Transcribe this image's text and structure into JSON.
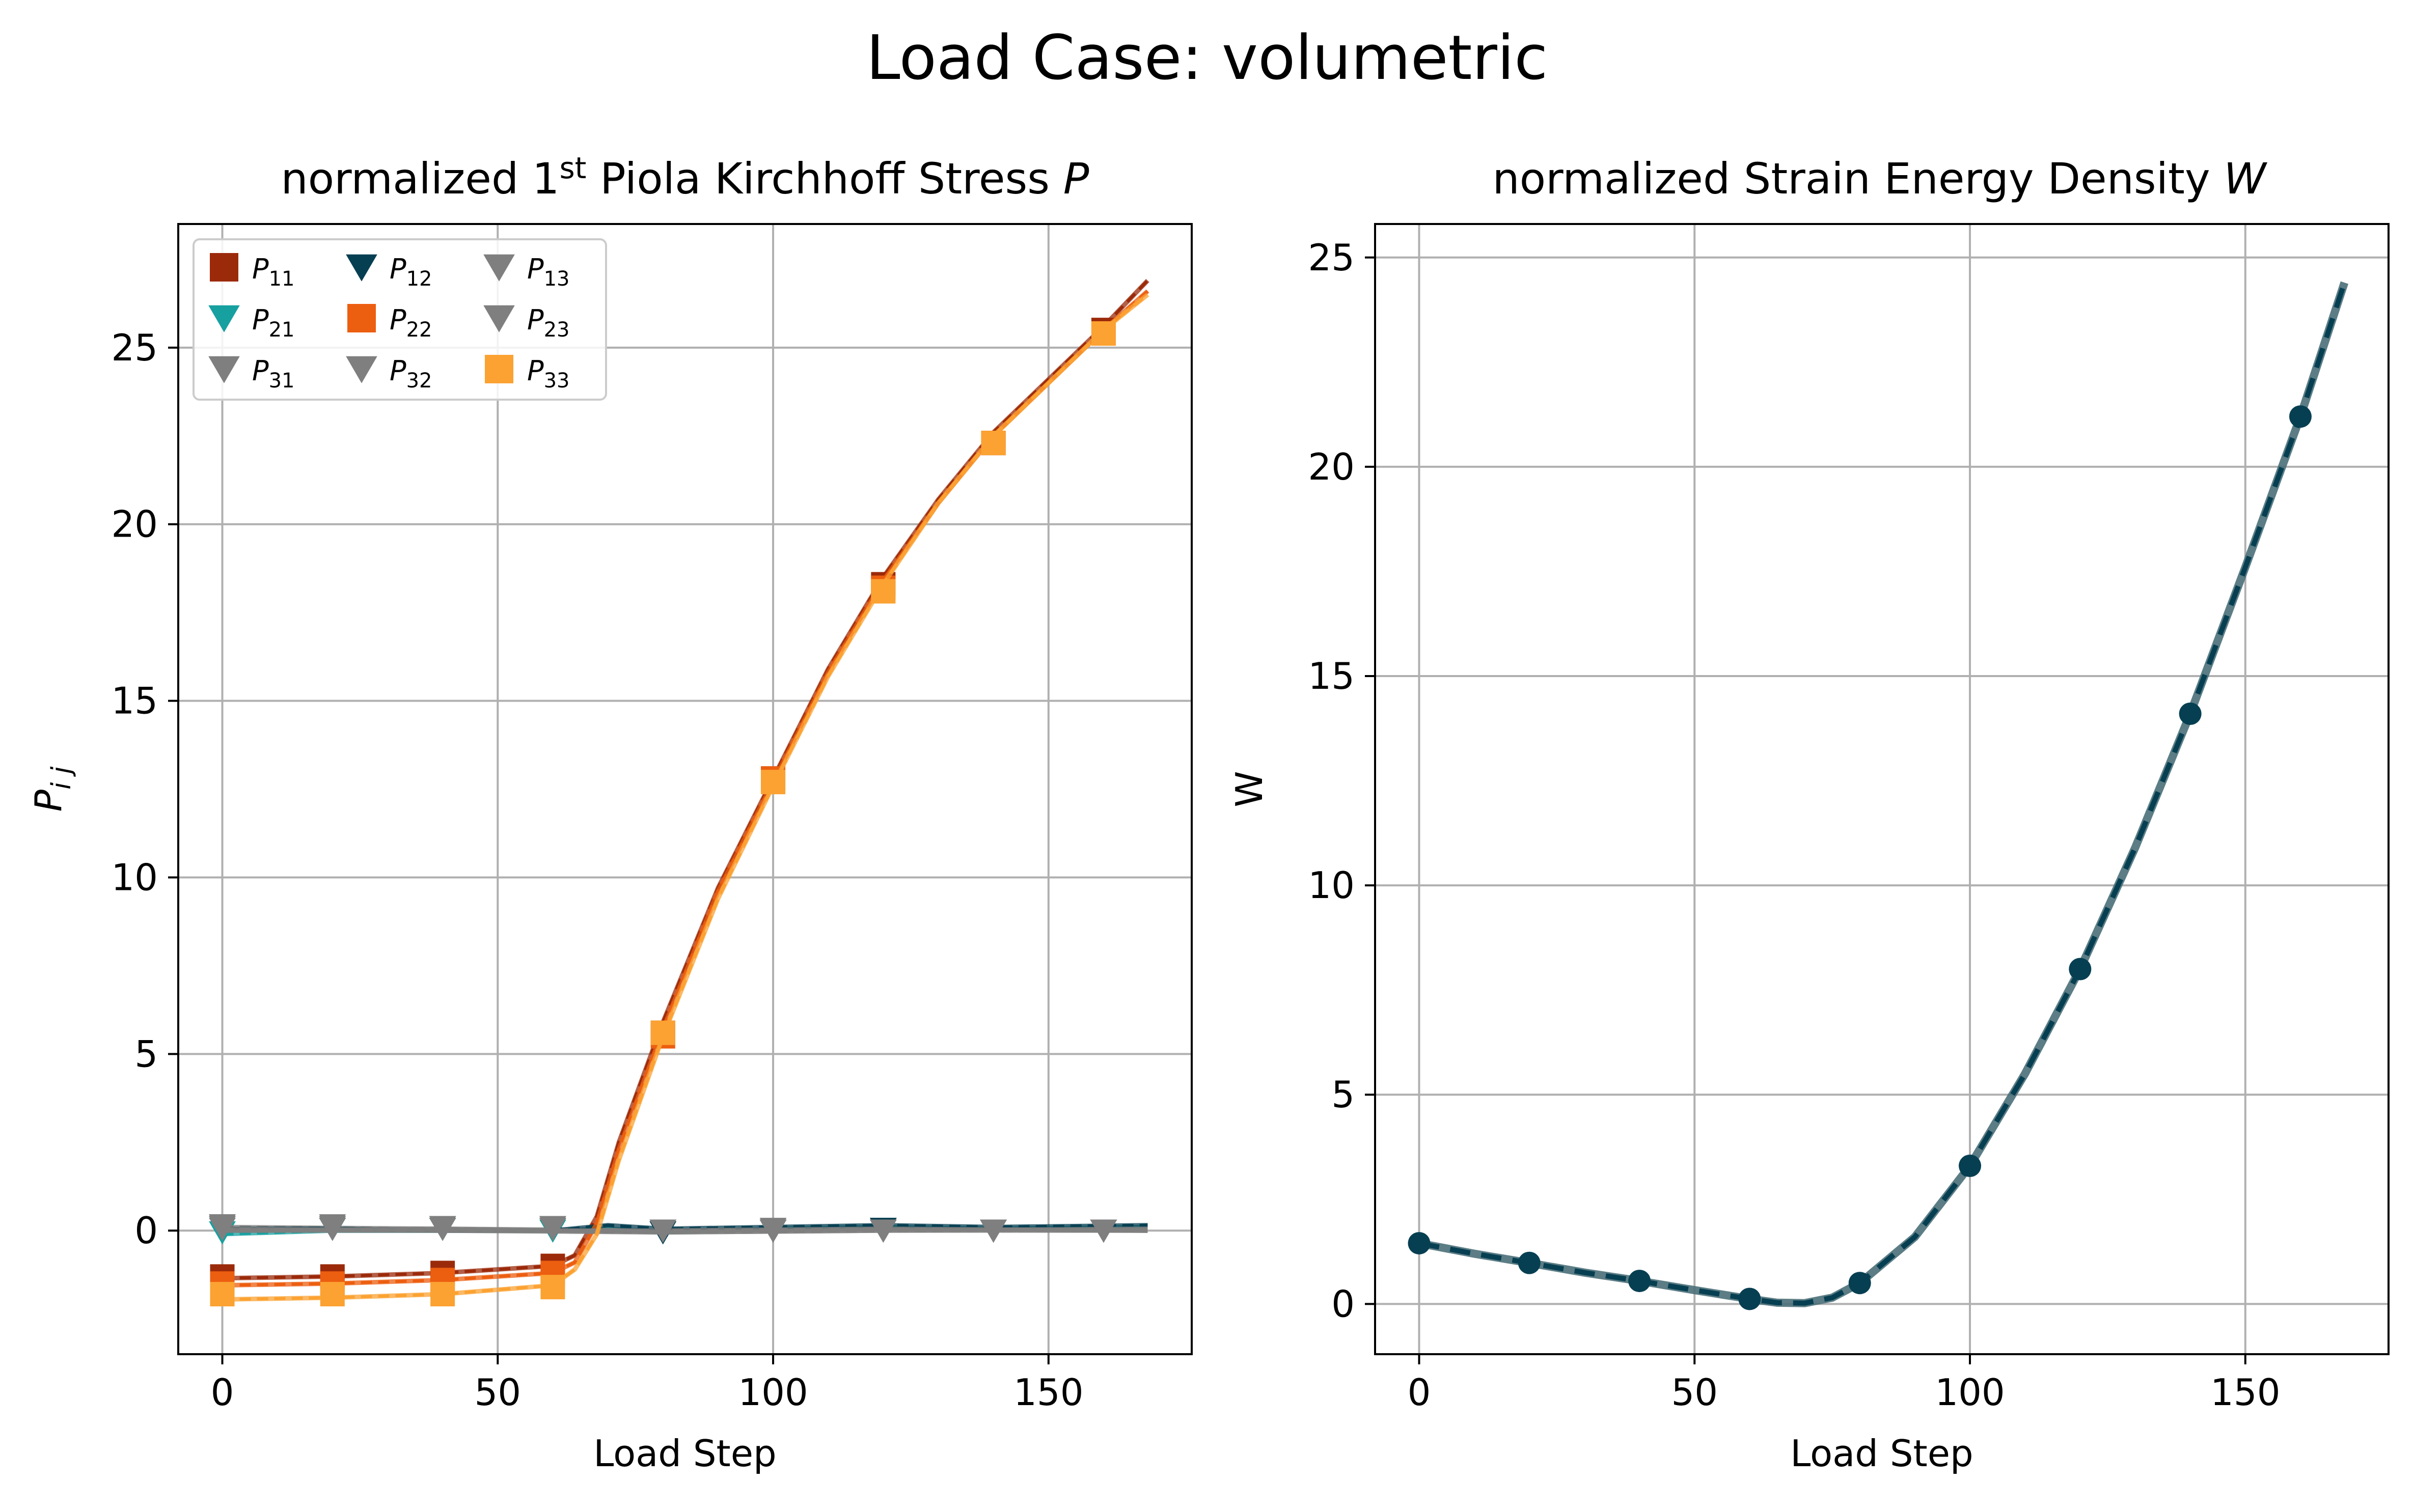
{
  "figure": {
    "suptitle": "Load Case: volumetric"
  },
  "chart_data": [
    {
      "type": "line",
      "title_prefix": "normalized 1",
      "title_sup": "st",
      "title_mid": " Piola Kirchhoff Stress ",
      "title_var": "P",
      "xlabel": "Load Step",
      "ylabel_main": "P",
      "ylabel_sub": "i j",
      "xlim": [
        -8,
        176
      ],
      "ylim": [
        -3.5,
        28.5
      ],
      "xticks": [
        0,
        50,
        100,
        150
      ],
      "yticks": [
        0,
        5,
        10,
        15,
        20,
        25
      ],
      "grid": true,
      "legend_position": "upper-left",
      "legend_columns": 3,
      "series": [
        {
          "name": "P11",
          "label_main": "P",
          "label_sub": "11",
          "marker": "square",
          "color": "#9b2a0a",
          "x": [
            0,
            20,
            40,
            60,
            80,
            100,
            120,
            140,
            160,
            168
          ],
          "y": [
            -1.3,
            -1.3,
            -1.2,
            -1.0,
            5.6,
            12.8,
            18.3,
            22.3,
            25.5,
            26.9
          ],
          "line_x": [
            0,
            20,
            40,
            60,
            64,
            68,
            72,
            80,
            90,
            100,
            110,
            120,
            130,
            140,
            150,
            160,
            168
          ],
          "line_y": [
            -1.35,
            -1.3,
            -1.2,
            -1.0,
            -0.7,
            0.4,
            2.5,
            5.9,
            9.7,
            12.8,
            15.9,
            18.5,
            20.7,
            22.6,
            24.1,
            25.6,
            26.9
          ]
        },
        {
          "name": "P21",
          "label_main": "P",
          "label_sub": "21",
          "marker": "tri-down",
          "color": "#16a0a0",
          "x": [
            0,
            20,
            40,
            60,
            80,
            100,
            120,
            140,
            160
          ],
          "y": [
            -0.05,
            0.05,
            0.05,
            0.0,
            -0.05,
            0.0,
            0.05,
            0.0,
            0.0
          ],
          "line_x": [
            0,
            20,
            40,
            60,
            70,
            80,
            100,
            120,
            140,
            168
          ],
          "line_y": [
            -0.1,
            0.0,
            0.0,
            0.0,
            0.05,
            -0.05,
            0.05,
            0.1,
            0.05,
            0.1
          ]
        },
        {
          "name": "P31",
          "label_main": "P",
          "label_sub": "31",
          "marker": "tri-down",
          "color": "#7f7f7f",
          "x": [
            0,
            20,
            40,
            60,
            80,
            100,
            120,
            140,
            160
          ],
          "y": [
            0.15,
            0.1,
            0.1,
            0.1,
            0.0,
            0.05,
            0.05,
            0.0,
            0.0
          ],
          "line_x": [
            0,
            40,
            80,
            120,
            168
          ],
          "line_y": [
            0.1,
            0.05,
            0.0,
            0.05,
            0.0
          ]
        },
        {
          "name": "P12",
          "label_main": "P",
          "label_sub": "12",
          "marker": "tri-down",
          "color": "#073f52",
          "x": [
            0,
            20,
            40,
            60,
            80,
            100,
            120,
            140,
            160
          ],
          "y": [
            0.1,
            0.05,
            0.05,
            0.05,
            -0.05,
            0.0,
            0.05,
            0.0,
            0.0
          ],
          "line_x": [
            0,
            20,
            40,
            60,
            70,
            80,
            100,
            120,
            140,
            168
          ],
          "line_y": [
            0.05,
            0.05,
            0.0,
            0.0,
            0.15,
            0.05,
            0.1,
            0.15,
            0.1,
            0.15
          ]
        },
        {
          "name": "P22",
          "label_main": "P",
          "label_sub": "22",
          "marker": "square",
          "color": "#ec5e10",
          "x": [
            0,
            20,
            40,
            60,
            80,
            100,
            120,
            140,
            160,
            168
          ],
          "y": [
            -1.5,
            -1.5,
            -1.4,
            -1.2,
            5.5,
            12.8,
            18.2,
            22.3,
            25.4,
            26.6
          ],
          "line_x": [
            0,
            20,
            40,
            60,
            64,
            68,
            72,
            80,
            90,
            100,
            110,
            120,
            130,
            140,
            150,
            160,
            168
          ],
          "line_y": [
            -1.55,
            -1.5,
            -1.4,
            -1.2,
            -0.9,
            0.2,
            2.3,
            5.7,
            9.6,
            12.7,
            15.8,
            18.4,
            20.6,
            22.5,
            24.0,
            25.5,
            26.6
          ]
        },
        {
          "name": "P32",
          "label_main": "P",
          "label_sub": "32",
          "marker": "tri-down",
          "color": "#7f7f7f",
          "x": [
            0,
            20,
            40,
            60,
            80,
            100,
            120,
            140,
            160
          ],
          "y": [
            0.05,
            0.1,
            0.1,
            0.05,
            0.0,
            0.0,
            0.0,
            0.0,
            0.0
          ],
          "line_x": [
            0,
            40,
            80,
            120,
            168
          ],
          "line_y": [
            0.0,
            0.05,
            -0.05,
            0.0,
            0.05
          ]
        },
        {
          "name": "P13",
          "label_main": "P",
          "label_sub": "13",
          "marker": "tri-down",
          "color": "#7f7f7f",
          "x": [
            0,
            20,
            40,
            60,
            80,
            100,
            120,
            140,
            160
          ],
          "y": [
            0.15,
            0.15,
            0.1,
            0.1,
            0.0,
            0.0,
            0.0,
            0.0,
            0.0
          ],
          "line_x": [
            0,
            40,
            80,
            120,
            168
          ],
          "line_y": [
            0.05,
            0.0,
            -0.05,
            0.0,
            0.0
          ]
        },
        {
          "name": "P23",
          "label_main": "P",
          "label_sub": "23",
          "marker": "tri-down",
          "color": "#7f7f7f",
          "x": [
            0,
            20,
            40,
            60,
            80,
            100,
            120,
            140,
            160
          ],
          "y": [
            0.1,
            0.05,
            0.05,
            0.05,
            0.0,
            0.0,
            0.0,
            0.0,
            0.0
          ],
          "line_x": [
            0,
            40,
            80,
            120,
            168
          ],
          "line_y": [
            0.0,
            0.0,
            0.0,
            0.05,
            0.0
          ]
        },
        {
          "name": "P33",
          "label_main": "P",
          "label_sub": "33",
          "marker": "square",
          "color": "#fba232",
          "x": [
            0,
            20,
            40,
            60,
            80,
            100,
            120,
            140,
            160,
            168
          ],
          "y": [
            -1.8,
            -1.8,
            -1.8,
            -1.6,
            5.6,
            12.7,
            18.1,
            22.3,
            25.4,
            26.5
          ],
          "line_x": [
            0,
            20,
            40,
            60,
            64,
            68,
            72,
            80,
            90,
            100,
            110,
            120,
            130,
            140,
            150,
            160,
            168
          ],
          "line_y": [
            -1.95,
            -1.9,
            -1.8,
            -1.55,
            -1.1,
            -0.1,
            2.0,
            5.5,
            9.4,
            12.6,
            15.7,
            18.3,
            20.6,
            22.5,
            24.0,
            25.5,
            26.5
          ]
        }
      ]
    },
    {
      "type": "line",
      "title_prefix": "normalized Strain Energy Density ",
      "title_var": "W",
      "xlabel": "Load Step",
      "ylabel": "W",
      "xlim": [
        -8,
        176
      ],
      "ylim": [
        -1.2,
        25.8
      ],
      "xticks": [
        0,
        50,
        100,
        150
      ],
      "yticks": [
        0,
        5,
        10,
        15,
        20,
        25
      ],
      "grid": true,
      "series": [
        {
          "name": "W",
          "marker": "circle",
          "color": "#073f52",
          "x": [
            0,
            20,
            40,
            60,
            80,
            100,
            120,
            140,
            160
          ],
          "y": [
            1.45,
            0.98,
            0.55,
            0.12,
            0.5,
            3.3,
            8.0,
            14.1,
            21.2
          ],
          "line_x": [
            0,
            10,
            20,
            30,
            40,
            50,
            60,
            65,
            70,
            75,
            80,
            90,
            100,
            110,
            120,
            130,
            140,
            150,
            160,
            168
          ],
          "line_y": [
            1.45,
            1.2,
            0.98,
            0.75,
            0.55,
            0.33,
            0.12,
            0.03,
            0.02,
            0.15,
            0.5,
            1.6,
            3.3,
            5.5,
            8.0,
            10.9,
            14.1,
            17.6,
            21.2,
            24.4
          ]
        }
      ]
    }
  ]
}
